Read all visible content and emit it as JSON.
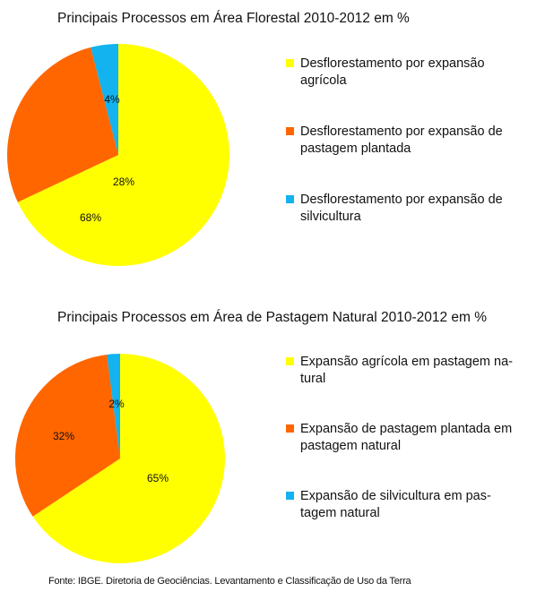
{
  "source": "Fonte: IBGE. Diretoria de Geociências. Levantamento e Classificação de Uso da Terra",
  "chart_data": [
    {
      "type": "pie",
      "title": "Principais Processos em Área Florestal 2010-2012 em %",
      "categories": [
        "Desflorestamento por expansão agrícola",
        "Desflorestamento por expansão de pastagem plantada",
        "Desflorestamento por expansão de silvicultura"
      ],
      "values": [
        68,
        28,
        4
      ],
      "labels": [
        "68%",
        "28%",
        "4%"
      ],
      "colors": [
        "#FFFF00",
        "#FF6600",
        "#12B3EE"
      ],
      "legend_lines": [
        [
          "Desflorestamento por expansão",
          "agrícola"
        ],
        [
          "Desflorestamento por expansão de",
          "pastagem plantada"
        ],
        [
          "Desflorestamento por expansão de",
          "silvicultura"
        ]
      ],
      "legend_position": "right"
    },
    {
      "type": "pie",
      "title": "Principais Processos em Área de Pastagem Natural 2010-2012 em %",
      "categories": [
        "Expansão agrícola em pastagem natural",
        "Expansão de pastagem plantada em pastagem natural",
        "Expansão de silvicultura em pastagem natural"
      ],
      "values": [
        65,
        32,
        2
      ],
      "labels": [
        "65%",
        "32%",
        "2%"
      ],
      "colors": [
        "#FFFF00",
        "#FF6600",
        "#12B3EE"
      ],
      "legend_lines": [
        [
          "Expansão agrícola em pastagem na-",
          "tural"
        ],
        [
          "Expansão de pastagem plantada em",
          "pastagem natural"
        ],
        [
          "Expansão de silvicultura em pas-",
          "tagem natural"
        ]
      ],
      "legend_position": "right"
    }
  ]
}
